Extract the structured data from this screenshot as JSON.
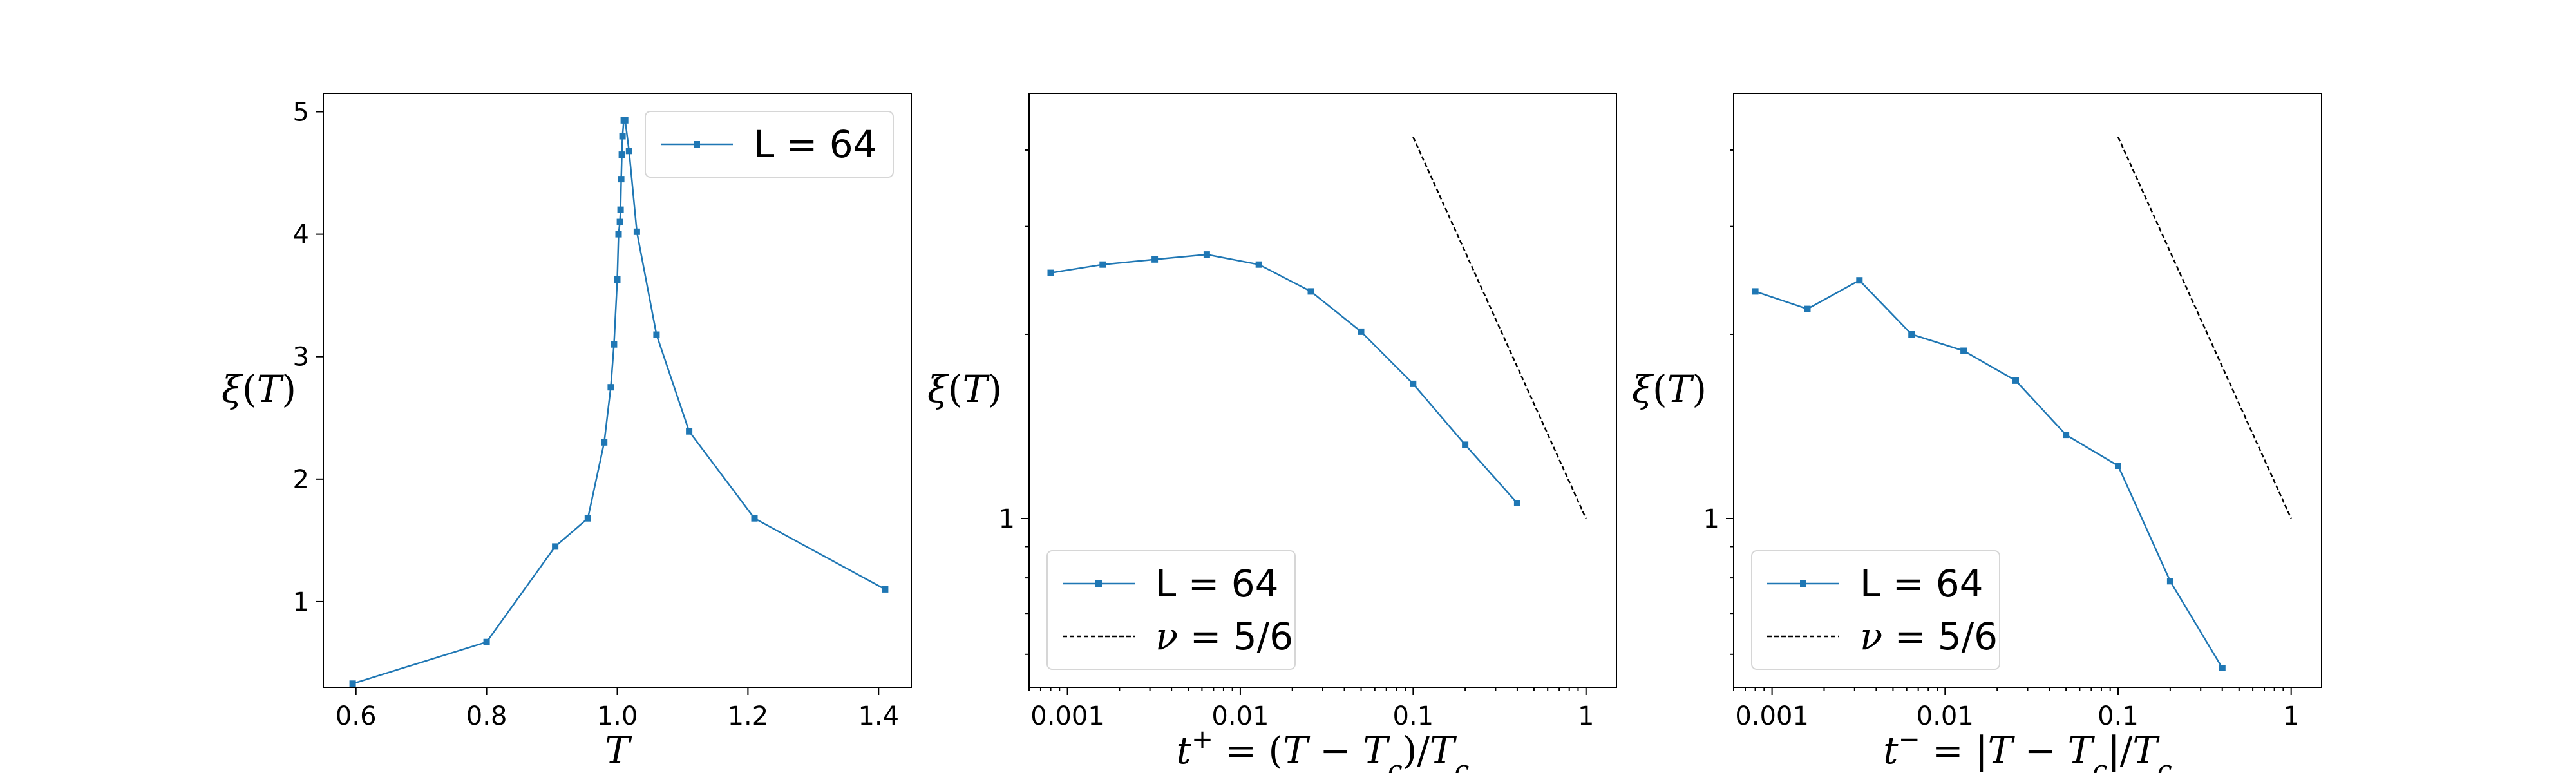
{
  "colors": {
    "series": "#1f77b4",
    "reference": "#000000",
    "frame": "#000000"
  },
  "chart_data": [
    {
      "type": "line",
      "xscale": "linear",
      "yscale": "linear",
      "xlim": [
        0.55,
        1.45
      ],
      "ylim": [
        0.3,
        5.15
      ],
      "xlabel": "T",
      "ylabel": "ξ(T)",
      "xticks": [
        0.6,
        0.8,
        1.0,
        1.2,
        1.4
      ],
      "xtick_labels": [
        "0.6",
        "0.8",
        "1.0",
        "1.2",
        "1.4"
      ],
      "yticks": [
        1,
        2,
        3,
        4,
        5
      ],
      "ytick_labels": [
        "1",
        "2",
        "3",
        "4",
        "5"
      ],
      "legend_position": "top-right",
      "series": [
        {
          "name": "L = 64",
          "marker": "square",
          "x": [
            0.595,
            0.8,
            0.905,
            0.955,
            0.98,
            0.99,
            0.995,
            1.0,
            1.002,
            1.004,
            1.005,
            1.006,
            1.007,
            1.008,
            1.01,
            1.012,
            1.018,
            1.03,
            1.06,
            1.11,
            1.21,
            1.41
          ],
          "y": [
            0.33,
            0.67,
            1.45,
            1.68,
            2.3,
            2.75,
            3.1,
            3.63,
            4.0,
            4.1,
            4.2,
            4.45,
            4.65,
            4.8,
            4.93,
            4.93,
            4.68,
            4.02,
            3.18,
            2.39,
            1.68,
            1.1
          ]
        }
      ]
    },
    {
      "type": "line",
      "xscale": "log",
      "yscale": "log",
      "xlim": [
        0.0006,
        1.5
      ],
      "ylim": [
        0.53,
        4.95
      ],
      "xlabel": "t⁺ = (T − T_c)/T_c",
      "ylabel": "ξ(T)",
      "xticks": [
        0.001,
        0.01,
        0.1,
        1
      ],
      "xtick_labels": [
        "0.001",
        "0.01",
        "0.1",
        "1"
      ],
      "yticks": [
        1
      ],
      "ytick_labels": [
        "1"
      ],
      "legend_position": "lower-left",
      "series": [
        {
          "name": "L = 64",
          "marker": "square",
          "x": [
            0.0008,
            0.0016,
            0.0032,
            0.0064,
            0.0128,
            0.0256,
            0.05,
            0.1,
            0.2,
            0.4
          ],
          "y": [
            2.52,
            2.6,
            2.65,
            2.7,
            2.6,
            2.35,
            2.02,
            1.66,
            1.32,
            1.06
          ]
        },
        {
          "name": "ν = 5/6",
          "style": "dashed",
          "x": [
            0.1,
            1
          ],
          "y": [
            4.2,
            1.0
          ]
        }
      ]
    },
    {
      "type": "line",
      "xscale": "log",
      "yscale": "log",
      "xlim": [
        0.0006,
        1.5
      ],
      "ylim": [
        0.53,
        4.95
      ],
      "xlabel": "t⁻ = |T − T_c|/T_c",
      "ylabel": "ξ(T)",
      "xticks": [
        0.001,
        0.01,
        0.1,
        1
      ],
      "xtick_labels": [
        "0.001",
        "0.01",
        "0.1",
        "1"
      ],
      "yticks": [
        1
      ],
      "ytick_labels": [
        "1"
      ],
      "legend_position": "lower-left",
      "series": [
        {
          "name": "L = 64",
          "marker": "square",
          "x": [
            0.0008,
            0.0016,
            0.0032,
            0.0064,
            0.0128,
            0.0256,
            0.05,
            0.1,
            0.2,
            0.4
          ],
          "y": [
            2.35,
            2.2,
            2.45,
            2.0,
            1.88,
            1.68,
            1.37,
            1.22,
            0.79,
            0.57
          ]
        },
        {
          "name": "ν = 5/6",
          "style": "dashed",
          "x": [
            0.1,
            1
          ],
          "y": [
            4.2,
            1.0
          ]
        }
      ]
    }
  ]
}
